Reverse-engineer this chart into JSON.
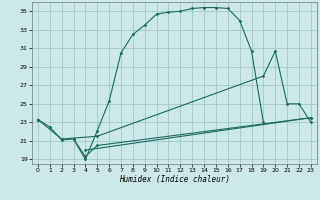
{
  "xlabel": "Humidex (Indice chaleur)",
  "bg_color": "#cde8e8",
  "grid_color": "#a0c8c8",
  "line_color": "#1a6b60",
  "xlim": [
    -0.5,
    23.5
  ],
  "ylim": [
    18.5,
    36.0
  ],
  "xticks": [
    0,
    1,
    2,
    3,
    4,
    5,
    6,
    7,
    8,
    9,
    10,
    11,
    12,
    13,
    14,
    15,
    16,
    17,
    18,
    19,
    20,
    21,
    22,
    23
  ],
  "yticks": [
    19,
    21,
    23,
    25,
    27,
    29,
    31,
    33,
    35
  ],
  "segments": {
    "top_curve": [
      [
        0,
        23.3
      ],
      [
        1,
        22.5
      ],
      [
        2,
        21.1
      ],
      [
        3,
        21.2
      ],
      [
        4,
        19.0
      ],
      [
        5,
        22.1
      ],
      [
        6,
        25.3
      ],
      [
        7,
        30.5
      ],
      [
        8,
        32.5
      ],
      [
        9,
        33.5
      ],
      [
        10,
        34.7
      ],
      [
        11,
        34.9
      ],
      [
        12,
        35.0
      ],
      [
        13,
        35.3
      ],
      [
        14,
        35.4
      ],
      [
        15,
        35.4
      ],
      [
        16,
        35.3
      ],
      [
        17,
        34.0
      ],
      [
        18,
        30.7
      ],
      [
        19,
        23.0
      ]
    ],
    "mid_curve": [
      [
        0,
        23.3
      ],
      [
        2,
        21.2
      ],
      [
        5,
        21.5
      ],
      [
        19,
        28.0
      ],
      [
        20,
        30.7
      ],
      [
        21,
        25.0
      ],
      [
        22,
        25.0
      ],
      [
        23,
        23.0
      ]
    ],
    "bot_curve": [
      [
        3,
        21.2
      ],
      [
        4,
        19.3
      ],
      [
        5,
        20.5
      ],
      [
        23,
        23.5
      ]
    ],
    "flat_curve": [
      [
        4,
        20.0
      ],
      [
        23,
        23.5
      ]
    ]
  }
}
